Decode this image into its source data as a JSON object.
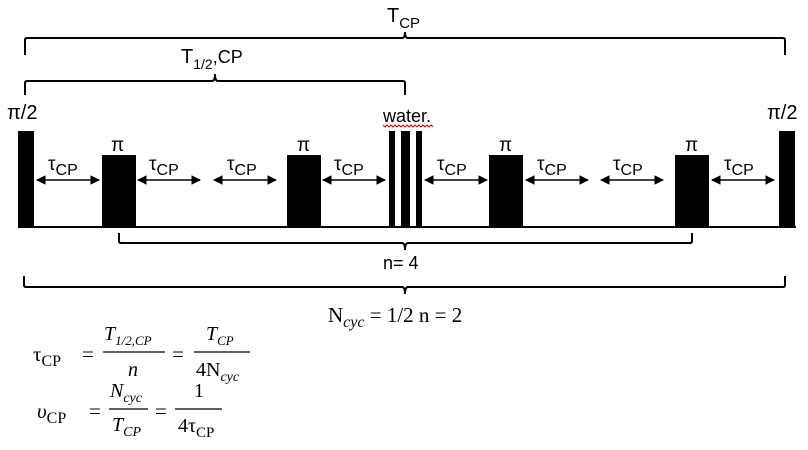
{
  "labels": {
    "t_cp_total": "T",
    "t_cp_total_sub": "CP",
    "t_half": "T",
    "t_half_sub": "1/2",
    "t_half_suffix": ",CP",
    "pi_half": "π/2",
    "pi": "π",
    "water": "water.",
    "tau": "τ",
    "tau_sub": "CP",
    "n_label": "n= 4",
    "ncyc_label": "N",
    "ncyc_sub": "cyc",
    "ncyc_value": " = 1/2 n = 2"
  },
  "equations": {
    "eq1_lhs": "τ",
    "eq1_lhs_sub": "CP",
    "eq1_num1": "T",
    "eq1_num1_sub": "1/2,CP",
    "eq1_den1": "n",
    "eq1_num2": "T",
    "eq1_num2_sub": "CP",
    "eq1_den2": "4N",
    "eq1_den2_sub": "cyc",
    "eq2_lhs": "υ",
    "eq2_lhs_sub": "CP",
    "eq2_num1": "N",
    "eq2_num1_sub": "cyc",
    "eq2_den1": "T",
    "eq2_den1_sub": "CP",
    "eq2_num2": "1",
    "eq2_den2": "4τ",
    "eq2_den2_sub": "CP",
    "equals": "="
  }
}
